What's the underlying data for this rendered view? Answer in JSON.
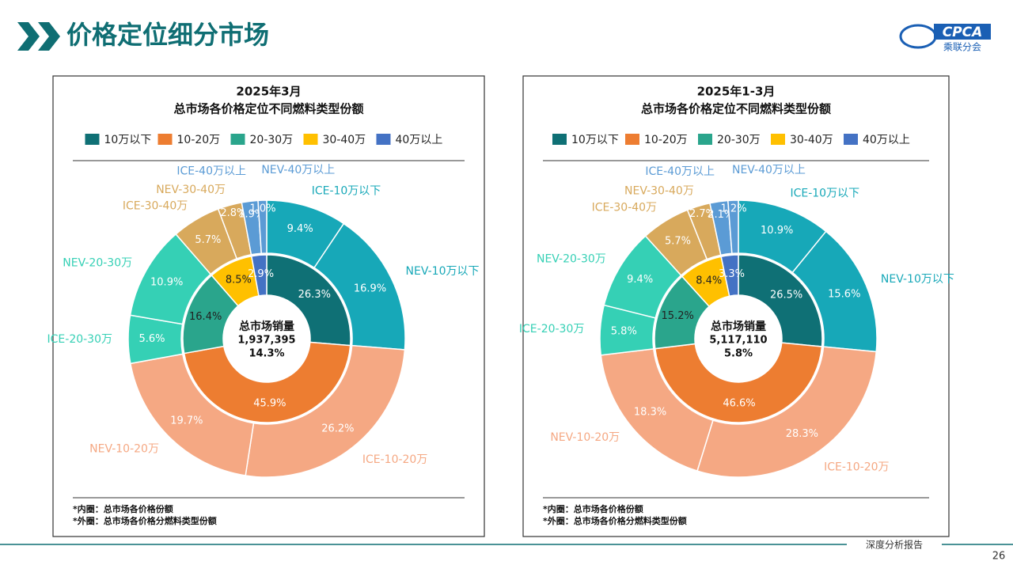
{
  "header": {
    "title": "价格定位细分市场",
    "logo": "CPCA",
    "logo_sub": "乘联分会"
  },
  "footer": {
    "text": "深度分析报告",
    "page": "26"
  },
  "chart_data": [
    {
      "type": "donut",
      "title": [
        "2025年3月",
        "总市场各价格定位不同燃料类型份额"
      ],
      "categories": [
        "10万以下",
        "10-20万",
        "20-30万",
        "30-40万",
        "40万以上"
      ],
      "colors": [
        "#0f7075",
        "#ed7d31",
        "#2aa58c",
        "#ffc000",
        "#4472c4"
      ],
      "values": [
        26.3,
        45.9,
        16.4,
        8.5,
        2.9
      ],
      "value_labels": [
        "26.3%",
        "45.9%",
        "16.4%",
        "8.5%",
        "2.9%"
      ],
      "outer": {
        "categories": [
          "ICE-10万以下",
          "NEV-10万以下",
          "ICE-10-20万",
          "NEV-10-20万",
          "ICE-20-30万",
          "NEV-20-30万",
          "ICE-30-40万",
          "NEV-30-40万",
          "ICE-40万以上",
          "NEV-40万以上"
        ],
        "colors": [
          "#17a8b8",
          "#17a8b8",
          "#f5a883",
          "#f5a883",
          "#35d0b5",
          "#35d0b5",
          "#d8a95c",
          "#d8a95c",
          "#5b9bd5",
          "#5b9bd5"
        ],
        "values": [
          9.4,
          16.9,
          26.2,
          19.7,
          5.6,
          10.9,
          5.7,
          2.8,
          1.9,
          1.0
        ],
        "value_labels": [
          "9.4%",
          "16.9%",
          "26.2%",
          "19.7%",
          "5.6%",
          "10.9%",
          "5.7%",
          "2.8%",
          "1.9%",
          "1.0%"
        ]
      },
      "center": [
        "总市场销量",
        "1,937,395",
        "14.3%"
      ],
      "notes": [
        "*内圈：总市场各价格份额",
        "*外圈：总市场各价格分燃料类型份额"
      ]
    },
    {
      "type": "donut",
      "title": [
        "2025年1-3月",
        "总市场各价格定位不同燃料类型份额"
      ],
      "categories": [
        "10万以下",
        "10-20万",
        "20-30万",
        "30-40万",
        "40万以上"
      ],
      "colors": [
        "#0f7075",
        "#ed7d31",
        "#2aa58c",
        "#ffc000",
        "#4472c4"
      ],
      "values": [
        26.5,
        46.6,
        15.2,
        8.4,
        3.3
      ],
      "value_labels": [
        "26.5%",
        "46.6%",
        "15.2%",
        "8.4%",
        "3.3%"
      ],
      "outer": {
        "categories": [
          "ICE-10万以下",
          "NEV-10万以下",
          "ICE-10-20万",
          "NEV-10-20万",
          "ICE-20-30万",
          "NEV-20-30万",
          "ICE-30-40万",
          "NEV-30-40万",
          "ICE-40万以上",
          "NEV-40万以上"
        ],
        "colors": [
          "#17a8b8",
          "#17a8b8",
          "#f5a883",
          "#f5a883",
          "#35d0b5",
          "#35d0b5",
          "#d8a95c",
          "#d8a95c",
          "#5b9bd5",
          "#5b9bd5"
        ],
        "values": [
          10.9,
          15.6,
          28.3,
          18.3,
          5.8,
          9.4,
          5.7,
          2.7,
          2.1,
          1.2
        ],
        "value_labels": [
          "10.9%",
          "15.6%",
          "28.3%",
          "18.3%",
          "5.8%",
          "9.4%",
          "5.7%",
          "2.7%",
          "2.1%",
          "1.2%"
        ]
      },
      "center": [
        "总市场销量",
        "5,117,110",
        "5.8%"
      ],
      "notes": [
        "*内圈：总市场各价格份额",
        "*外圈：总市场各价格分燃料类型份额"
      ]
    }
  ]
}
